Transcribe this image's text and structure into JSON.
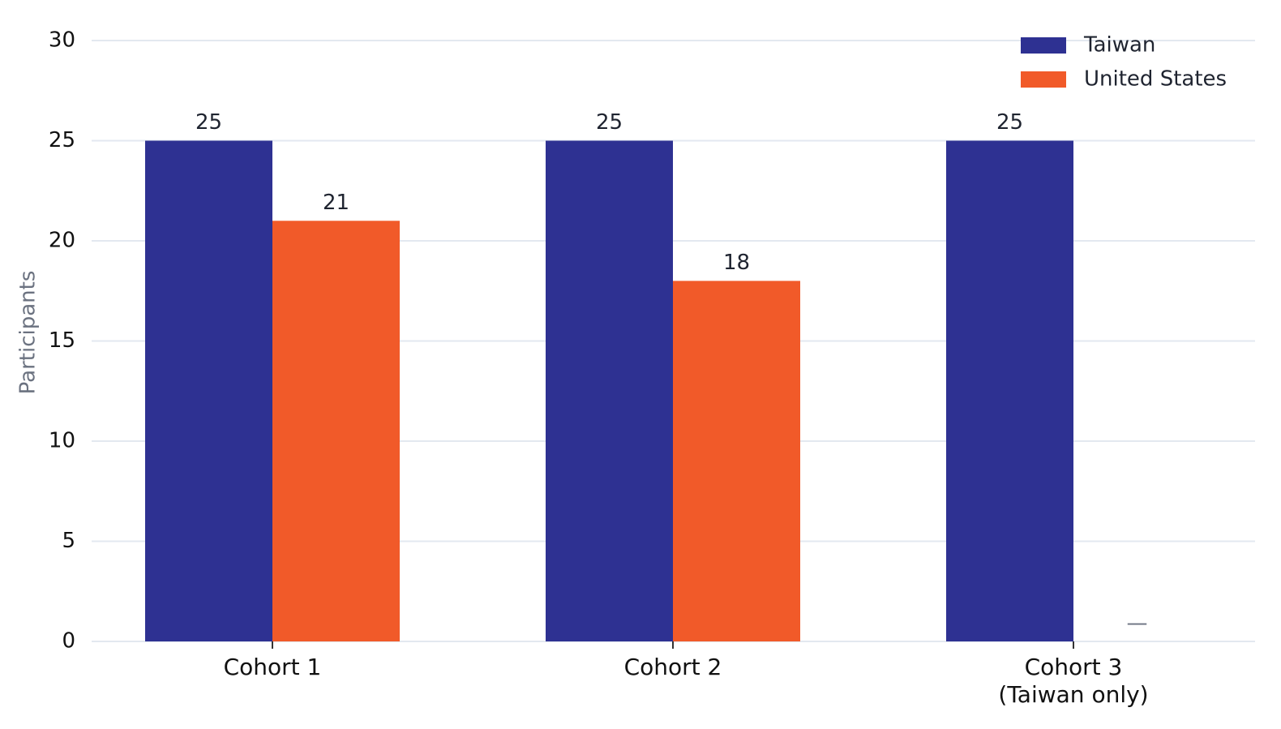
{
  "chart_data": {
    "type": "bar",
    "categories": [
      "Cohort 1",
      "Cohort 2",
      "Cohort 3\n(Taiwan only)"
    ],
    "series": [
      {
        "name": "Taiwan",
        "color": "#2e3192",
        "values": [
          25,
          25,
          25
        ]
      },
      {
        "name": "United States",
        "color": "#f15a29",
        "values": [
          21,
          18,
          null
        ],
        "value_labels": [
          "21",
          "18",
          "—"
        ]
      }
    ],
    "y_label": "Participants",
    "ylim": [
      0,
      30
    ],
    "yticks": [
      0,
      5,
      10,
      15,
      20,
      25,
      30
    ],
    "grid": true,
    "legend": "top-right"
  }
}
